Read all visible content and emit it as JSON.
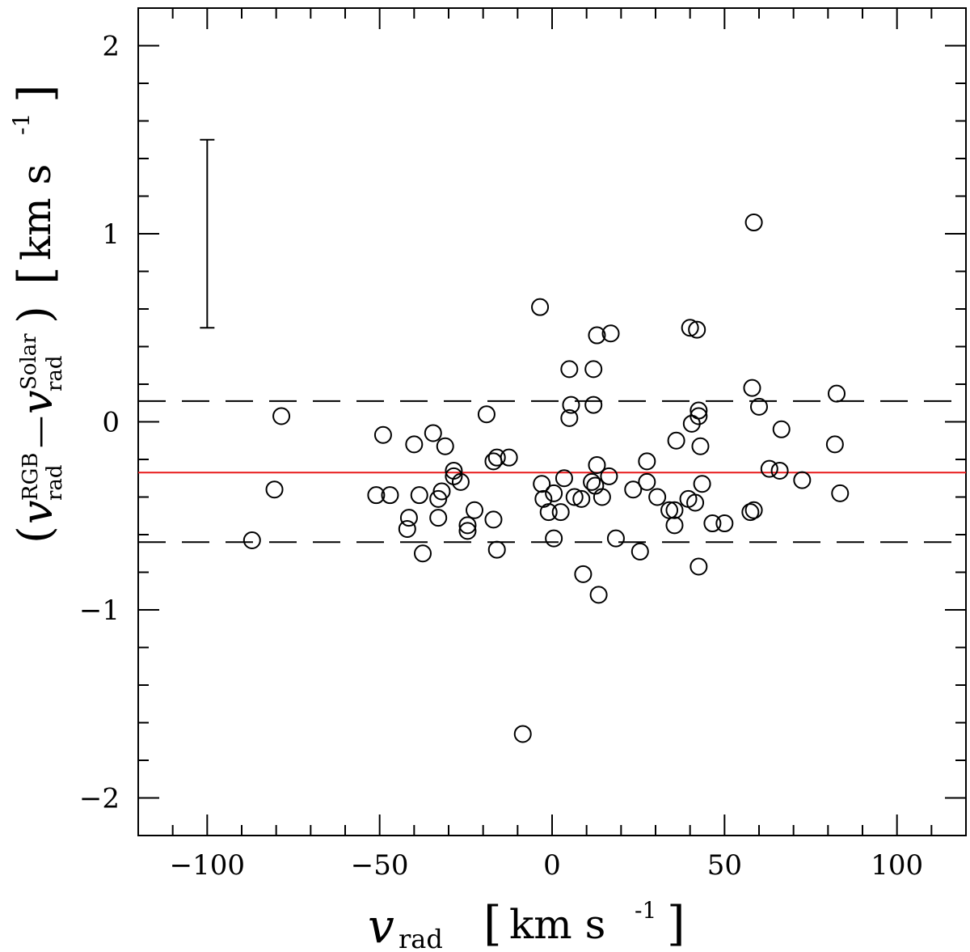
{
  "chart_data": {
    "type": "scatter",
    "xlabel": {
      "main": "v",
      "sub": "rad",
      "unit_open": "[",
      "unit": "km s",
      "unit_sup": "-1",
      "unit_close": "]"
    },
    "ylabel": {
      "open": "(",
      "v1": "v",
      "v1_sup": "RGB",
      "v1_sub": "rad",
      "minus": "—",
      "v2": "v",
      "v2_sup": "Solar",
      "v2_sub": "rad",
      "close": ")",
      "unit_open": "[",
      "unit": "km s",
      "unit_sup": "-1",
      "unit_close": "]"
    },
    "xlim": [
      -120,
      120
    ],
    "ylim": [
      -2.2,
      2.2
    ],
    "xticks": [
      -100,
      -50,
      0,
      50,
      100
    ],
    "xtick_labels": [
      "−100",
      "−50",
      "0",
      "50",
      "100"
    ],
    "yticks": [
      -2,
      -1,
      0,
      1,
      2
    ],
    "ytick_labels": [
      "−2",
      "−1",
      "0",
      "1",
      "2"
    ],
    "x_minor_step": 10,
    "y_minor_step": 0.2,
    "grid": false,
    "mean_line": {
      "y": -0.27,
      "color": "#e8191a"
    },
    "sigma_lines": [
      0.11,
      -0.64
    ],
    "error_bar": {
      "x": -100,
      "y_low": 0.5,
      "y_high": 1.5
    },
    "marker": "open-circle",
    "points": [
      [
        -87.0,
        -0.63
      ],
      [
        -80.5,
        -0.36
      ],
      [
        -78.5,
        0.03
      ],
      [
        -51.0,
        -0.39
      ],
      [
        -49.0,
        -0.07
      ],
      [
        -47.0,
        -0.39
      ],
      [
        -42.0,
        -0.57
      ],
      [
        -41.5,
        -0.51
      ],
      [
        -40.0,
        -0.12
      ],
      [
        -38.5,
        -0.39
      ],
      [
        -37.5,
        -0.7
      ],
      [
        -34.5,
        -0.06
      ],
      [
        -33.0,
        -0.41
      ],
      [
        -33.0,
        -0.51
      ],
      [
        -32.0,
        -0.37
      ],
      [
        -31.0,
        -0.13
      ],
      [
        -28.5,
        -0.26
      ],
      [
        -28.5,
        -0.29
      ],
      [
        -26.5,
        -0.32
      ],
      [
        -24.5,
        -0.58
      ],
      [
        -24.5,
        -0.55
      ],
      [
        -22.5,
        -0.47
      ],
      [
        -19.0,
        0.04
      ],
      [
        -17.0,
        -0.21
      ],
      [
        -17.0,
        -0.52
      ],
      [
        -16.0,
        -0.68
      ],
      [
        -16.0,
        -0.19
      ],
      [
        -12.5,
        -0.19
      ],
      [
        -8.5,
        -1.66
      ],
      [
        -3.5,
        0.61
      ],
      [
        -3.0,
        -0.33
      ],
      [
        -2.5,
        -0.41
      ],
      [
        -1.0,
        -0.48
      ],
      [
        0.5,
        -0.38
      ],
      [
        0.5,
        -0.62
      ],
      [
        2.5,
        -0.48
      ],
      [
        3.5,
        -0.3
      ],
      [
        5.0,
        0.02
      ],
      [
        5.0,
        0.28
      ],
      [
        5.5,
        0.09
      ],
      [
        6.5,
        -0.4
      ],
      [
        8.5,
        -0.41
      ],
      [
        9.0,
        -0.81
      ],
      [
        11.5,
        -0.32
      ],
      [
        12.0,
        0.28
      ],
      [
        12.0,
        0.09
      ],
      [
        12.5,
        -0.34
      ],
      [
        13.0,
        -0.23
      ],
      [
        13.0,
        0.46
      ],
      [
        13.5,
        -0.92
      ],
      [
        14.5,
        -0.4
      ],
      [
        16.5,
        -0.29
      ],
      [
        17.0,
        0.47
      ],
      [
        18.5,
        -0.62
      ],
      [
        23.5,
        -0.36
      ],
      [
        25.5,
        -0.69
      ],
      [
        27.5,
        -0.32
      ],
      [
        27.5,
        -0.21
      ],
      [
        30.5,
        -0.4
      ],
      [
        34.0,
        -0.47
      ],
      [
        35.5,
        -0.55
      ],
      [
        35.5,
        -0.47
      ],
      [
        36.0,
        -0.1
      ],
      [
        39.5,
        -0.41
      ],
      [
        40.0,
        0.5
      ],
      [
        40.5,
        -0.01
      ],
      [
        41.5,
        -0.43
      ],
      [
        42.0,
        0.49
      ],
      [
        42.5,
        0.06
      ],
      [
        42.5,
        0.03
      ],
      [
        43.0,
        -0.13
      ],
      [
        42.5,
        -0.77
      ],
      [
        43.5,
        -0.33
      ],
      [
        46.5,
        -0.54
      ],
      [
        50.0,
        -0.54
      ],
      [
        57.5,
        -0.48
      ],
      [
        58.0,
        0.18
      ],
      [
        58.5,
        -0.47
      ],
      [
        58.5,
        1.06
      ],
      [
        60.0,
        0.08
      ],
      [
        63.0,
        -0.25
      ],
      [
        66.0,
        -0.26
      ],
      [
        66.5,
        -0.04
      ],
      [
        72.5,
        -0.31
      ],
      [
        82.0,
        -0.12
      ],
      [
        82.5,
        0.15
      ],
      [
        83.5,
        -0.38
      ]
    ]
  }
}
